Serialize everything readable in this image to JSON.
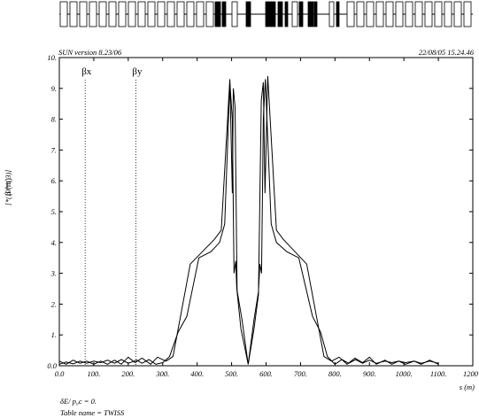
{
  "header": {
    "program_label": "SUN version 8.23/06",
    "timestamp": "22/08/05  15.24.46"
  },
  "footer": {
    "momentum_label": "δE/ p₀c  =  0.",
    "table_label": "Table name = TWISS"
  },
  "chart_data": {
    "type": "line",
    "ylabel_main": "β (m)",
    "ylabel_scale": "[*(10**( 3)]",
    "xlabel": "s (m)",
    "xlim": [
      0,
      1200
    ],
    "ylim": [
      0,
      10
    ],
    "x_ticks": [
      0,
      100,
      200,
      300,
      400,
      500,
      600,
      700,
      800,
      900,
      1000,
      1100,
      1200
    ],
    "x_tick_labels": [
      "0.0",
      "100.",
      "200.",
      "300.",
      "400.",
      "500.",
      "600.",
      "700.",
      "800.",
      "900.",
      "1000.",
      "1100.",
      "1200"
    ],
    "y_ticks": [
      0,
      1,
      2,
      3,
      4,
      5,
      6,
      7,
      8,
      9,
      10
    ],
    "y_tick_labels": [
      "0.0",
      "1.",
      "2.",
      "3.",
      "4.",
      "5.",
      "6.",
      "7.",
      "8.",
      "9.",
      "10."
    ],
    "legend_lines": [
      {
        "label": "βx",
        "x": 75,
        "style": "dotted"
      },
      {
        "label": "βy",
        "x": 222,
        "style": "dotted"
      }
    ],
    "series": [
      {
        "label": "βx",
        "points": [
          [
            0,
            0.05
          ],
          [
            20,
            0.12
          ],
          [
            40,
            0.06
          ],
          [
            60,
            0.15
          ],
          [
            80,
            0.08
          ],
          [
            100,
            0.15
          ],
          [
            120,
            0.1
          ],
          [
            140,
            0.18
          ],
          [
            160,
            0.08
          ],
          [
            180,
            0.2
          ],
          [
            200,
            0.08
          ],
          [
            225,
            0.18
          ],
          [
            240,
            0.08
          ],
          [
            260,
            0.2
          ],
          [
            280,
            0.05
          ],
          [
            300,
            0.1
          ],
          [
            320,
            0.3
          ],
          [
            345,
            1.1
          ],
          [
            370,
            1.6
          ],
          [
            405,
            3.5
          ],
          [
            440,
            3.7
          ],
          [
            465,
            4.0
          ],
          [
            480,
            4.6
          ],
          [
            495,
            9.2
          ],
          [
            502,
            8.0
          ],
          [
            507,
            3.0
          ],
          [
            512,
            3.4
          ],
          [
            515,
            2.5
          ],
          [
            530,
            1.5
          ],
          [
            548,
            0.05
          ],
          [
            565,
            1.5
          ],
          [
            578,
            2.4
          ],
          [
            582,
            3.3
          ],
          [
            587,
            3.0
          ],
          [
            592,
            8.0
          ],
          [
            598,
            9.3
          ],
          [
            615,
            4.6
          ],
          [
            630,
            4.0
          ],
          [
            660,
            3.7
          ],
          [
            695,
            3.5
          ],
          [
            735,
            1.6
          ],
          [
            758,
            1.1
          ],
          [
            778,
            0.3
          ],
          [
            800,
            0.05
          ],
          [
            820,
            0.2
          ],
          [
            840,
            0.08
          ],
          [
            860,
            0.2
          ],
          [
            880,
            0.08
          ],
          [
            900,
            0.18
          ],
          [
            920,
            0.08
          ],
          [
            945,
            0.15
          ],
          [
            965,
            0.1
          ],
          [
            985,
            0.15
          ],
          [
            1005,
            0.1
          ],
          [
            1030,
            0.15
          ],
          [
            1050,
            0.08
          ],
          [
            1075,
            0.15
          ],
          [
            1100,
            0.08
          ]
        ]
      },
      {
        "label": "βy",
        "points": [
          [
            0,
            0.15
          ],
          [
            20,
            0.05
          ],
          [
            40,
            0.18
          ],
          [
            60,
            0.08
          ],
          [
            80,
            0.15
          ],
          [
            100,
            0.05
          ],
          [
            120,
            0.15
          ],
          [
            140,
            0.05
          ],
          [
            160,
            0.18
          ],
          [
            180,
            0.05
          ],
          [
            200,
            0.28
          ],
          [
            220,
            0.1
          ],
          [
            240,
            0.25
          ],
          [
            265,
            0.05
          ],
          [
            285,
            0.28
          ],
          [
            310,
            0.15
          ],
          [
            330,
            0.3
          ],
          [
            380,
            3.3
          ],
          [
            450,
            4.1
          ],
          [
            470,
            4.4
          ],
          [
            495,
            9.3
          ],
          [
            502,
            5.6
          ],
          [
            505,
            9.0
          ],
          [
            510,
            8.4
          ],
          [
            516,
            2.4
          ],
          [
            527,
            1.2
          ],
          [
            548,
            0.05
          ],
          [
            565,
            1.2
          ],
          [
            578,
            2.3
          ],
          [
            586,
            8.6
          ],
          [
            592,
            9.2
          ],
          [
            597,
            5.6
          ],
          [
            605,
            9.4
          ],
          [
            630,
            4.4
          ],
          [
            650,
            4.1
          ],
          [
            718,
            3.3
          ],
          [
            768,
            0.3
          ],
          [
            790,
            0.15
          ],
          [
            812,
            0.28
          ],
          [
            835,
            0.05
          ],
          [
            858,
            0.25
          ],
          [
            880,
            0.1
          ],
          [
            900,
            0.28
          ],
          [
            920,
            0.05
          ],
          [
            945,
            0.18
          ],
          [
            965,
            0.05
          ],
          [
            985,
            0.15
          ],
          [
            1005,
            0.05
          ],
          [
            1030,
            0.15
          ],
          [
            1050,
            0.05
          ],
          [
            1075,
            0.18
          ],
          [
            1100,
            0.05
          ]
        ]
      }
    ],
    "grid": false
  }
}
